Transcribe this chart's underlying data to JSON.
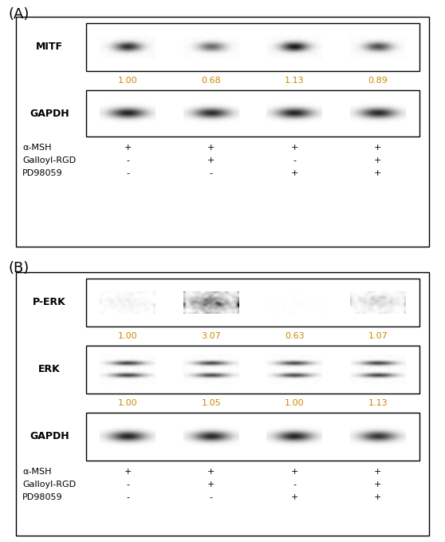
{
  "panel_A": {
    "label": "(A)",
    "bands": {
      "MITF": {
        "label": "MITF",
        "values": [
          "1.00",
          "0.68",
          "1.13",
          "0.89"
        ],
        "intensities": [
          0.85,
          0.6,
          0.95,
          0.72
        ]
      },
      "GAPDH": {
        "label": "GAPDH",
        "intensities": [
          0.92,
          0.88,
          0.92,
          0.9
        ]
      }
    },
    "treatments": {
      "alpha_MSH": [
        "+",
        "+",
        "+",
        "+"
      ],
      "Galloyl_RGD": [
        "-",
        "+",
        "-",
        "+"
      ],
      "PD98059": [
        "-",
        "-",
        "+",
        "+"
      ]
    }
  },
  "panel_B": {
    "label": "(B)",
    "bands": {
      "P_ERK": {
        "label": "P-ERK",
        "values": [
          "1.00",
          "3.07",
          "0.63",
          "1.07"
        ],
        "intensities": [
          0.3,
          0.92,
          0.12,
          0.5
        ],
        "noisy": true
      },
      "ERK": {
        "label": "ERK",
        "values": [
          "1.00",
          "1.05",
          "1.00",
          "1.13"
        ],
        "intensities": [
          0.78,
          0.75,
          0.75,
          0.78
        ],
        "double_band": true
      },
      "GAPDH": {
        "label": "GAPDH",
        "intensities": [
          0.92,
          0.9,
          0.92,
          0.85
        ]
      }
    },
    "treatments": {
      "alpha_MSH": [
        "+",
        "+",
        "+",
        "+"
      ],
      "Galloyl_RGD": [
        "-",
        "+",
        "-",
        "+"
      ],
      "PD98059": [
        "-",
        "-",
        "+",
        "+"
      ]
    }
  },
  "colors": {
    "background": "#ffffff",
    "text_value_color": "#cc8800",
    "text_label_color": "#000000"
  },
  "font_sizes": {
    "panel_label": 13,
    "band_label": 9,
    "value_label": 8,
    "treatment_label": 8,
    "treatment_value": 8
  }
}
